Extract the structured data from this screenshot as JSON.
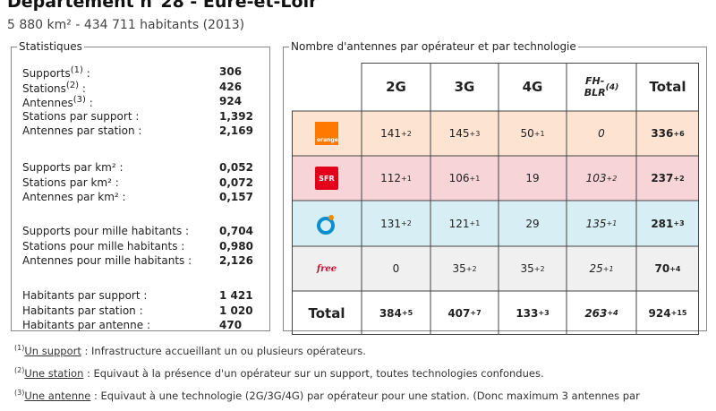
{
  "header": {
    "title": "Département n°28 - Eure-et-Loir",
    "subtitle": "5 880 km² - 434 711 habitants (2013)"
  },
  "stats": {
    "legend": "Statistiques",
    "groups": [
      [
        {
          "label": "Supports",
          "sup": "(1)",
          "suffix": " :",
          "value": "306"
        },
        {
          "label": "Stations",
          "sup": "(2)",
          "suffix": " :",
          "value": "426"
        },
        {
          "label": "Antennes",
          "sup": "(3)",
          "suffix": " :",
          "value": "924"
        },
        {
          "label": "Stations par support :",
          "sup": "",
          "suffix": "",
          "value": "1,392"
        },
        {
          "label": "Antennes par station :",
          "sup": "",
          "suffix": "",
          "value": "2,169"
        }
      ],
      [
        {
          "label": "Supports par km² :",
          "sup": "",
          "suffix": "",
          "value": "0,052"
        },
        {
          "label": "Stations par km² :",
          "sup": "",
          "suffix": "",
          "value": "0,072"
        },
        {
          "label": "Antennes par km² :",
          "sup": "",
          "suffix": "",
          "value": "0,157"
        }
      ],
      [
        {
          "label": "Supports pour mille habitants :",
          "sup": "",
          "suffix": "",
          "value": "0,704"
        },
        {
          "label": "Stations pour mille habitants :",
          "sup": "",
          "suffix": "",
          "value": "0,980"
        },
        {
          "label": "Antennes pour mille habitants :",
          "sup": "",
          "suffix": "",
          "value": "2,126"
        }
      ],
      [
        {
          "label": "Habitants par support :",
          "sup": "",
          "suffix": "",
          "value": "1 421"
        },
        {
          "label": "Habitants par station :",
          "sup": "",
          "suffix": "",
          "value": "1 020"
        },
        {
          "label": "Habitants par antenne :",
          "sup": "",
          "suffix": "",
          "value": "470"
        }
      ]
    ]
  },
  "table": {
    "legend": "Nombre d'antennes par opérateur et par technologie",
    "headers": [
      {
        "text": "2G",
        "sup": ""
      },
      {
        "text": "3G",
        "sup": ""
      },
      {
        "text": "4G",
        "sup": ""
      },
      {
        "text": "FH-BLR",
        "sup": "(4)"
      },
      {
        "text": "Total",
        "sup": ""
      }
    ],
    "rows": [
      {
        "operator": "orange",
        "logo_text": "orange",
        "bg": "#fde3d2",
        "cells": [
          {
            "v": "141",
            "d": "+2"
          },
          {
            "v": "145",
            "d": "+3"
          },
          {
            "v": "50",
            "d": "+1"
          },
          {
            "v": "0",
            "d": ""
          },
          {
            "v": "336",
            "d": "+6"
          }
        ]
      },
      {
        "operator": "sfr",
        "logo_text": "SFR",
        "bg": "#f6d4d8",
        "cells": [
          {
            "v": "112",
            "d": "+1"
          },
          {
            "v": "106",
            "d": "+1"
          },
          {
            "v": "19",
            "d": ""
          },
          {
            "v": "103",
            "d": "+2"
          },
          {
            "v": "237",
            "d": "+2"
          }
        ]
      },
      {
        "operator": "bouygues",
        "logo_text": "",
        "bg": "#d6eef4",
        "cells": [
          {
            "v": "131",
            "d": "+2"
          },
          {
            "v": "121",
            "d": "+1"
          },
          {
            "v": "29",
            "d": ""
          },
          {
            "v": "135",
            "d": "+1"
          },
          {
            "v": "281",
            "d": "+3"
          }
        ]
      },
      {
        "operator": "free",
        "logo_text": "free",
        "bg": "#f0f0f0",
        "cells": [
          {
            "v": "0",
            "d": ""
          },
          {
            "v": "35",
            "d": "+2"
          },
          {
            "v": "35",
            "d": "+2"
          },
          {
            "v": "25",
            "d": "+1"
          },
          {
            "v": "70",
            "d": "+4"
          }
        ]
      }
    ],
    "total_row": {
      "label": "Total",
      "cells": [
        {
          "v": "384",
          "d": "+5"
        },
        {
          "v": "407",
          "d": "+7"
        },
        {
          "v": "133",
          "d": "+3"
        },
        {
          "v": "263",
          "d": "+4"
        },
        {
          "v": "924",
          "d": "+15"
        }
      ]
    }
  },
  "footnotes": [
    {
      "sup": "(1)",
      "term": "Un support",
      "text": " : Infrastructure accueillant un ou plusieurs opérateurs."
    },
    {
      "sup": "(2)",
      "term": "Une station",
      "text": " : Equivaut à la présence d'un opérateur sur un support, toutes technologies confondues."
    },
    {
      "sup": "(3)",
      "term": "Une antenne",
      "text": " : Equivaut à une technologie (2G/3G/4G) par opérateur pour une station. (Donc maximum 3 antennes par"
    }
  ]
}
